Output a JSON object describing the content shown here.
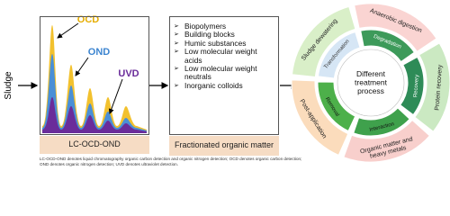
{
  "left_label": "Sludge",
  "chromatogram": {
    "labels": [
      "OCD",
      "OND",
      "UVD"
    ],
    "caption": "LC-OCD-OND"
  },
  "fractions": {
    "items": [
      "Biopolymers",
      "Building blocks",
      "Humic substances",
      "Low molecular weight acids",
      "Low molecular weight neutrals",
      "Inorganic colloids"
    ],
    "caption": "Fractionated organic matter"
  },
  "treatment": {
    "center": [
      "Different",
      "treatment",
      "process"
    ],
    "outer": [
      [
        "Sludge dewatering"
      ],
      [
        "Anaerobic digestion"
      ],
      [
        "Protein recovery"
      ],
      [
        "Organic matter and",
        "heavy metals"
      ],
      [
        "Post-application"
      ]
    ],
    "inner": [
      [
        "Transformation"
      ],
      [
        "Degradation"
      ],
      [
        "Recovery"
      ],
      [
        "Interaction"
      ],
      [
        "Removal"
      ]
    ]
  },
  "footnote": "LC-OCD-OND denotes liquid chromatography organic carbon detection and organic nitrogen detection; OCD denotes organic carbon detection; OND denotes organic nitrogen detection; UVD denotes ultraviolet detection."
}
